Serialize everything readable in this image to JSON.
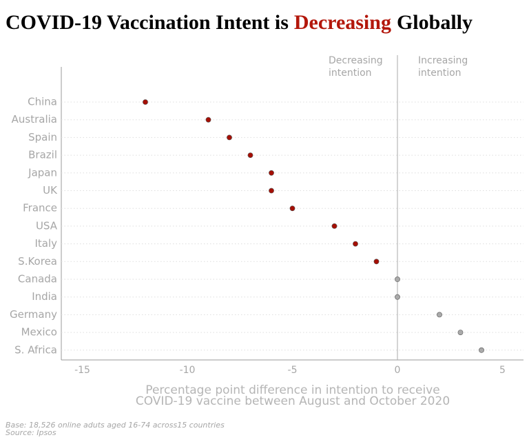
{
  "chart_data": {
    "type": "dot",
    "title_parts": [
      "COVID-19 Vaccination Intent is",
      "Decreasing",
      "Globally"
    ],
    "title_highlight_color": "#b3170b",
    "categories": [
      "China",
      "Australia",
      "Spain",
      "Brazil",
      "Japan",
      "UK",
      "France",
      "USA",
      "Italy",
      "S.Korea",
      "Canada",
      "India",
      "Germany",
      "Mexico",
      "S. Africa"
    ],
    "values": [
      -12,
      -9,
      -8,
      -7,
      -6,
      -6,
      -5,
      -3,
      -2,
      -1,
      0,
      0,
      2,
      3,
      4
    ],
    "colors": [
      "#a50f05",
      "#a50f05",
      "#a50f05",
      "#a50f05",
      "#a50f05",
      "#a50f05",
      "#a50f05",
      "#a50f05",
      "#a50f05",
      "#a50f05",
      "#aaaaaa",
      "#aaaaaa",
      "#aaaaaa",
      "#aaaaaa",
      "#aaaaaa"
    ],
    "xlim": [
      -16,
      6
    ],
    "xticks": [
      -15,
      -10,
      -5,
      0,
      5
    ],
    "reference_line": 0,
    "grid": true,
    "annotations": [
      [
        "Decreasing",
        "intention"
      ],
      [
        "Increasing",
        "intention"
      ]
    ],
    "x_label": [
      "Percentage point difference in intention to receive",
      "COVID-19 vaccine between August and October 2020"
    ],
    "footnotes": [
      "Base: 18,526 online aduts aged 16-74 across15 countries",
      "Source: Ipsos"
    ]
  }
}
